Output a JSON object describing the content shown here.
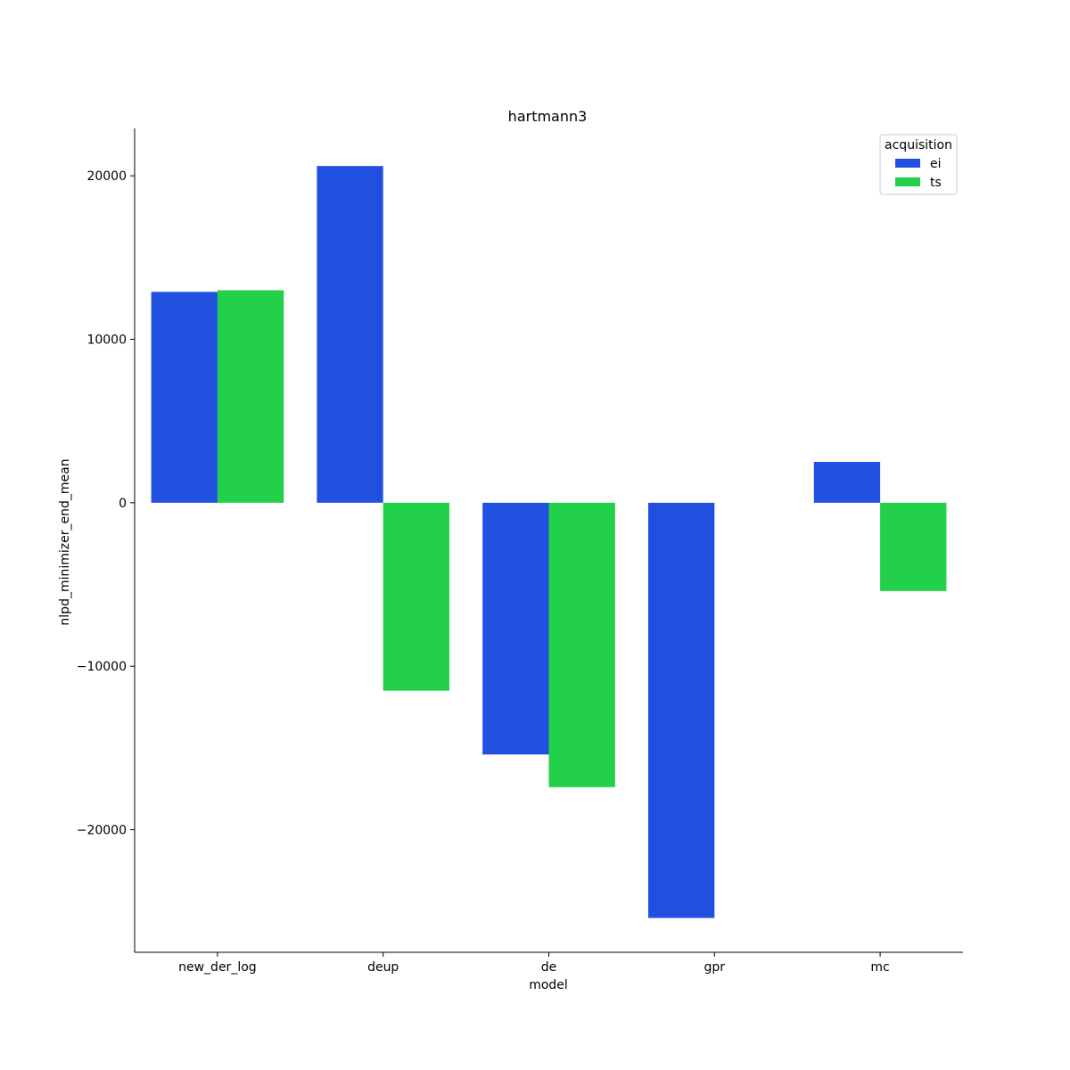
{
  "chart_data": {
    "type": "bar",
    "title": "hartmann3",
    "xlabel": "model",
    "ylabel": "nlpd_minimizer_end_mean",
    "categories": [
      "new_der_log",
      "deup",
      "de",
      "gpr",
      "mc"
    ],
    "series": [
      {
        "name": "ei",
        "color": "#2150e0",
        "values": [
          12900,
          20600,
          -15400,
          -25400,
          2500
        ]
      },
      {
        "name": "ts",
        "color": "#22d04a",
        "values": [
          13000,
          -11500,
          -17400,
          null,
          -5400
        ]
      }
    ],
    "ylim": [
      -27500,
      22900
    ],
    "yticks": [
      -20000,
      -10000,
      0,
      10000,
      20000
    ],
    "ytick_labels": [
      "−20000",
      "−10000",
      "0",
      "10000",
      "20000"
    ],
    "grid": false,
    "legend": {
      "title": "acquisition",
      "position": "top-right"
    }
  }
}
